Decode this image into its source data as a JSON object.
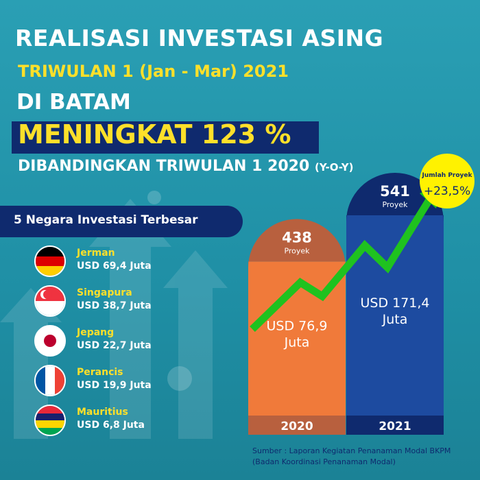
{
  "header": {
    "title": "REALISASI INVESTASI ASING",
    "period": "TRIWULAN 1 (Jan - Mar) 2021",
    "location": "DI BATAM",
    "highlight": "MENINGKAT 123 %",
    "comparison": "DIBANDINGKAN TRIWULAN 1 2020",
    "comparison_note": "(Y-O-Y)"
  },
  "countries_panel": {
    "heading": "5 Negara Investasi Terbesar",
    "items": [
      {
        "name": "Jerman",
        "value": "USD 69,4 Juta",
        "flag_icon": "germany-flag-icon"
      },
      {
        "name": "Singapura",
        "value": "USD 38,7 Juta",
        "flag_icon": "singapore-flag-icon"
      },
      {
        "name": "Jepang",
        "value": "USD 22,7 Juta",
        "flag_icon": "japan-flag-icon"
      },
      {
        "name": "Perancis",
        "value": "USD 19,9 Juta",
        "flag_icon": "france-flag-icon"
      },
      {
        "name": "Mauritius",
        "value": "USD 6,8 Juta",
        "flag_icon": "mauritius-flag-icon"
      }
    ]
  },
  "chart_data": {
    "type": "bar",
    "categories": [
      "2020",
      "2021"
    ],
    "series": [
      {
        "values": [
          76.9,
          171.4
        ]
      }
    ],
    "value_labels": [
      "USD 76,9 Juta",
      "USD 171,4 Juta"
    ],
    "projects": [
      438,
      541
    ],
    "project_unit": "Proyek",
    "badge": {
      "title": "Jumlah Proyek",
      "value": "+23,5%"
    },
    "trend": "increasing",
    "colors": {
      "2020_body": "#f07a3a",
      "2020_cap": "#b8603e",
      "2021_body": "#1d4ba0",
      "2021_cap": "#0f2a6e",
      "arrow": "#1fc21f",
      "badge": "#fff200"
    }
  },
  "footer": {
    "source_line1": "Sumber : Laporan Kegiatan Penanaman Modal BKPM",
    "source_line2": "(Badan Koordinasi Penanaman Modal)"
  },
  "colors": {
    "background": "#2a9fb4",
    "navy": "#0f2a6e",
    "yellow": "#ffe02a"
  }
}
